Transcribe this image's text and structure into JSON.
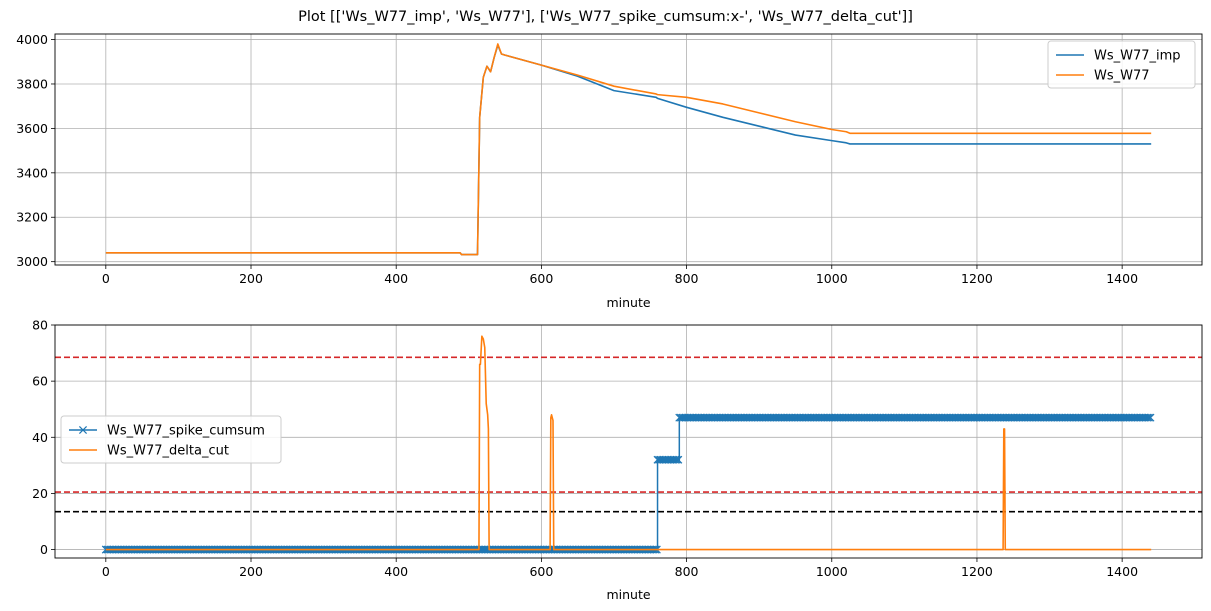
{
  "figure": {
    "title": "Plot [['Ws_W77_imp', 'Ws_W77'], ['Ws_W77_spike_cumsum:x-', 'Ws_W77_delta_cut']]"
  },
  "chart_data": [
    {
      "type": "line",
      "xlabel": "minute",
      "ylabel": "",
      "xlim": [
        -70,
        1510
      ],
      "ylim": [
        2985,
        4025
      ],
      "xticks": [
        0,
        200,
        400,
        600,
        800,
        1000,
        1200,
        1400
      ],
      "yticks": [
        3000,
        3200,
        3400,
        3600,
        3800,
        4000
      ],
      "grid": true,
      "legend": "top-right",
      "series": [
        {
          "name": "Ws_W77_imp",
          "color": "#1f77b4",
          "x": [
            0,
            488,
            490,
            512,
            515,
            520,
            525,
            530,
            535,
            540,
            545,
            550,
            600,
            650,
            700,
            758,
            760,
            800,
            850,
            900,
            950,
            1000,
            1020,
            1025,
            1220,
            1440
          ],
          "y": [
            3040,
            3040,
            3032,
            3032,
            3650,
            3830,
            3880,
            3855,
            3920,
            3975,
            3935,
            3930,
            3885,
            3835,
            3770,
            3740,
            3735,
            3695,
            3650,
            3610,
            3570,
            3545,
            3535,
            3530,
            3530,
            3530
          ]
        },
        {
          "name": "Ws_W77",
          "color": "#ff7f0e",
          "x": [
            0,
            488,
            490,
            512,
            515,
            520,
            525,
            530,
            535,
            540,
            545,
            550,
            600,
            650,
            700,
            758,
            760,
            800,
            850,
            900,
            950,
            1000,
            1020,
            1025,
            1220,
            1440
          ],
          "y": [
            3040,
            3040,
            3032,
            3032,
            3650,
            3830,
            3880,
            3855,
            3920,
            3980,
            3935,
            3930,
            3885,
            3840,
            3790,
            3755,
            3752,
            3740,
            3710,
            3670,
            3630,
            3595,
            3585,
            3578,
            3578,
            3578
          ]
        }
      ]
    },
    {
      "type": "line",
      "xlabel": "minute",
      "ylabel": "",
      "xlim": [
        -70,
        1510
      ],
      "ylim": [
        -3,
        80
      ],
      "xticks": [
        0,
        200,
        400,
        600,
        800,
        1000,
        1200,
        1400
      ],
      "yticks": [
        0,
        20,
        40,
        60,
        80
      ],
      "grid": true,
      "legend": "center-left",
      "series": [
        {
          "name": "Ws_W77_spike_cumsum",
          "color": "#1f77b4",
          "marker": "x",
          "segments": [
            {
              "x_start": 0,
              "x_end": 760,
              "y": 0
            },
            {
              "x_start": 760,
              "x_end": 790,
              "y": 32
            },
            {
              "x_start": 790,
              "x_end": 1440,
              "y": 47
            }
          ]
        },
        {
          "name": "Ws_W77_delta_cut",
          "color": "#ff7f0e",
          "x": [
            0,
            514,
            515,
            516,
            518,
            520,
            522,
            524,
            526,
            527,
            528,
            529,
            612,
            613,
            614,
            615,
            616,
            617,
            618,
            1236,
            1237,
            1238,
            1239,
            1440
          ],
          "y": [
            0,
            0,
            66,
            66,
            76,
            75,
            72,
            52,
            48,
            43,
            0,
            0,
            0,
            47,
            48,
            47,
            46,
            0,
            0,
            0,
            43,
            43,
            0,
            0
          ]
        }
      ],
      "reference_lines": [
        {
          "y": 68.5,
          "color": "#d62728",
          "style": "dashed"
        },
        {
          "y": 20.5,
          "color": "#d62728",
          "style": "dashed"
        },
        {
          "y": 13.5,
          "color": "#000000",
          "style": "dashed"
        }
      ]
    }
  ]
}
